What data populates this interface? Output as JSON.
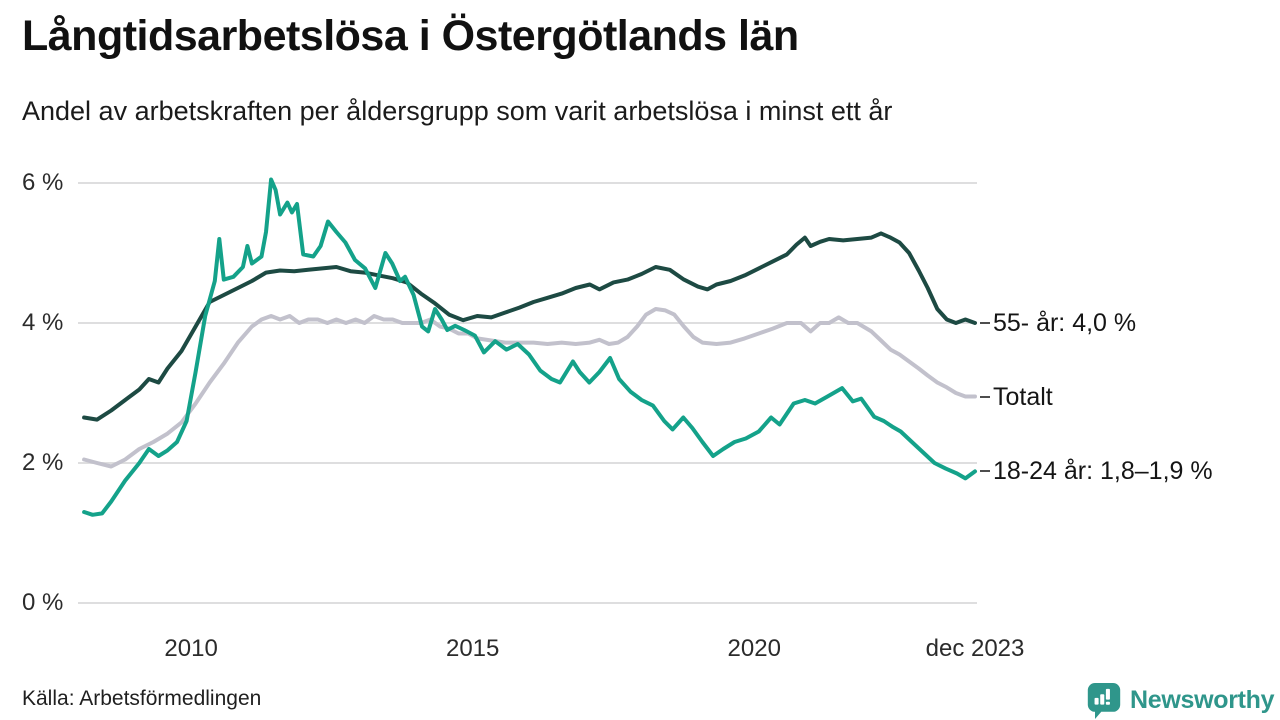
{
  "header": {
    "title": "Långtidsarbetslösa i Östergötlands län",
    "subtitle": "Andel av arbetskraften per åldersgrupp som varit arbetslösa i minst ett år"
  },
  "footer": {
    "source": "Källa: Arbetsförmedlingen",
    "logo_text": "Newsworthy"
  },
  "colors": {
    "grid": "#dededf",
    "axis_text": "#2b2b2b",
    "tick_dash": "#4d4d4d",
    "logo": "#2F968B"
  },
  "chart_data": {
    "type": "line",
    "title": "Långtidsarbetslösa i Östergötlands län",
    "subtitle": "Andel av arbetskraften per åldersgrupp som varit arbetslösa i minst ett år",
    "x_unit": "decimal_year",
    "x_range": [
      2008.08,
      2023.92
    ],
    "ylim": [
      0,
      6.6
    ],
    "grid": "horizontal",
    "legend_position": "end-labels-right",
    "yticks": [
      {
        "value": 0,
        "label": "0 %"
      },
      {
        "value": 2,
        "label": "2 %"
      },
      {
        "value": 4,
        "label": "4 %"
      },
      {
        "value": 6,
        "label": "6 %"
      }
    ],
    "xticks": [
      {
        "value": 2010,
        "label": "2010"
      },
      {
        "value": 2015,
        "label": "2015"
      },
      {
        "value": 2020,
        "label": "2020"
      },
      {
        "value": 2023.92,
        "label": "dec 2023"
      }
    ],
    "series": [
      {
        "id": "totalt",
        "name": "Totalt",
        "end_label": "Totalt",
        "color": "#c2c1cc",
        "points": [
          [
            2008.1,
            2.05
          ],
          [
            2008.33,
            2.0
          ],
          [
            2008.58,
            1.95
          ],
          [
            2008.83,
            2.05
          ],
          [
            2009.08,
            2.2
          ],
          [
            2009.33,
            2.3
          ],
          [
            2009.58,
            2.42
          ],
          [
            2009.83,
            2.58
          ],
          [
            2010.08,
            2.85
          ],
          [
            2010.33,
            3.15
          ],
          [
            2010.58,
            3.42
          ],
          [
            2010.83,
            3.72
          ],
          [
            2011.08,
            3.95
          ],
          [
            2011.25,
            4.05
          ],
          [
            2011.42,
            4.1
          ],
          [
            2011.58,
            4.05
          ],
          [
            2011.75,
            4.1
          ],
          [
            2011.92,
            4.0
          ],
          [
            2012.08,
            4.05
          ],
          [
            2012.25,
            4.05
          ],
          [
            2012.42,
            4.0
          ],
          [
            2012.58,
            4.05
          ],
          [
            2012.75,
            4.0
          ],
          [
            2012.92,
            4.05
          ],
          [
            2013.08,
            4.0
          ],
          [
            2013.25,
            4.1
          ],
          [
            2013.42,
            4.05
          ],
          [
            2013.58,
            4.05
          ],
          [
            2013.75,
            4.0
          ],
          [
            2013.92,
            4.0
          ],
          [
            2014.08,
            4.0
          ],
          [
            2014.25,
            4.05
          ],
          [
            2014.42,
            3.95
          ],
          [
            2014.58,
            3.92
          ],
          [
            2014.75,
            3.85
          ],
          [
            2014.92,
            3.85
          ],
          [
            2015.08,
            3.78
          ],
          [
            2015.33,
            3.75
          ],
          [
            2015.58,
            3.72
          ],
          [
            2015.83,
            3.72
          ],
          [
            2016.08,
            3.72
          ],
          [
            2016.33,
            3.7
          ],
          [
            2016.58,
            3.72
          ],
          [
            2016.83,
            3.7
          ],
          [
            2017.08,
            3.72
          ],
          [
            2017.25,
            3.76
          ],
          [
            2017.42,
            3.7
          ],
          [
            2017.58,
            3.72
          ],
          [
            2017.75,
            3.8
          ],
          [
            2017.92,
            3.95
          ],
          [
            2018.08,
            4.12
          ],
          [
            2018.25,
            4.2
          ],
          [
            2018.42,
            4.18
          ],
          [
            2018.58,
            4.12
          ],
          [
            2018.75,
            3.95
          ],
          [
            2018.92,
            3.8
          ],
          [
            2019.08,
            3.72
          ],
          [
            2019.33,
            3.7
          ],
          [
            2019.58,
            3.72
          ],
          [
            2019.83,
            3.78
          ],
          [
            2020.08,
            3.85
          ],
          [
            2020.33,
            3.92
          ],
          [
            2020.58,
            4.0
          ],
          [
            2020.83,
            4.0
          ],
          [
            2021.0,
            3.88
          ],
          [
            2021.17,
            4.0
          ],
          [
            2021.33,
            4.0
          ],
          [
            2021.5,
            4.08
          ],
          [
            2021.67,
            4.0
          ],
          [
            2021.83,
            4.0
          ],
          [
            2022.08,
            3.88
          ],
          [
            2022.25,
            3.75
          ],
          [
            2022.42,
            3.62
          ],
          [
            2022.58,
            3.55
          ],
          [
            2022.75,
            3.45
          ],
          [
            2022.92,
            3.35
          ],
          [
            2023.08,
            3.25
          ],
          [
            2023.25,
            3.15
          ],
          [
            2023.42,
            3.08
          ],
          [
            2023.58,
            3.0
          ],
          [
            2023.75,
            2.95
          ],
          [
            2023.92,
            2.95
          ]
        ]
      },
      {
        "id": "55-ar",
        "name": "55- år",
        "end_label": "55- år: 4,0 %",
        "color": "#1d4a43",
        "points": [
          [
            2008.1,
            2.65
          ],
          [
            2008.33,
            2.62
          ],
          [
            2008.58,
            2.75
          ],
          [
            2008.83,
            2.9
          ],
          [
            2009.08,
            3.05
          ],
          [
            2009.25,
            3.2
          ],
          [
            2009.42,
            3.15
          ],
          [
            2009.58,
            3.35
          ],
          [
            2009.83,
            3.6
          ],
          [
            2010.08,
            3.95
          ],
          [
            2010.33,
            4.3
          ],
          [
            2010.58,
            4.4
          ],
          [
            2010.83,
            4.5
          ],
          [
            2011.08,
            4.6
          ],
          [
            2011.33,
            4.72
          ],
          [
            2011.58,
            4.75
          ],
          [
            2011.83,
            4.74
          ],
          [
            2012.08,
            4.76
          ],
          [
            2012.33,
            4.78
          ],
          [
            2012.58,
            4.8
          ],
          [
            2012.83,
            4.74
          ],
          [
            2013.08,
            4.72
          ],
          [
            2013.33,
            4.68
          ],
          [
            2013.58,
            4.64
          ],
          [
            2013.83,
            4.58
          ],
          [
            2014.08,
            4.42
          ],
          [
            2014.33,
            4.28
          ],
          [
            2014.58,
            4.12
          ],
          [
            2014.83,
            4.04
          ],
          [
            2015.08,
            4.1
          ],
          [
            2015.33,
            4.08
          ],
          [
            2015.58,
            4.15
          ],
          [
            2015.83,
            4.22
          ],
          [
            2016.08,
            4.3
          ],
          [
            2016.33,
            4.36
          ],
          [
            2016.58,
            4.42
          ],
          [
            2016.83,
            4.5
          ],
          [
            2017.08,
            4.55
          ],
          [
            2017.25,
            4.48
          ],
          [
            2017.5,
            4.58
          ],
          [
            2017.75,
            4.62
          ],
          [
            2018.0,
            4.7
          ],
          [
            2018.25,
            4.8
          ],
          [
            2018.5,
            4.76
          ],
          [
            2018.75,
            4.62
          ],
          [
            2019.0,
            4.52
          ],
          [
            2019.17,
            4.48
          ],
          [
            2019.33,
            4.55
          ],
          [
            2019.58,
            4.6
          ],
          [
            2019.83,
            4.68
          ],
          [
            2020.08,
            4.78
          ],
          [
            2020.33,
            4.88
          ],
          [
            2020.58,
            4.98
          ],
          [
            2020.75,
            5.12
          ],
          [
            2020.9,
            5.22
          ],
          [
            2021.0,
            5.1
          ],
          [
            2021.17,
            5.16
          ],
          [
            2021.33,
            5.2
          ],
          [
            2021.58,
            5.18
          ],
          [
            2021.83,
            5.2
          ],
          [
            2022.08,
            5.22
          ],
          [
            2022.25,
            5.28
          ],
          [
            2022.42,
            5.22
          ],
          [
            2022.58,
            5.15
          ],
          [
            2022.75,
            5.0
          ],
          [
            2022.92,
            4.75
          ],
          [
            2023.08,
            4.5
          ],
          [
            2023.25,
            4.2
          ],
          [
            2023.42,
            4.05
          ],
          [
            2023.58,
            4.0
          ],
          [
            2023.75,
            4.05
          ],
          [
            2023.92,
            4.0
          ]
        ]
      },
      {
        "id": "18-24-ar",
        "name": "18-24 år",
        "end_label": "18-24 år: 1,8–1,9 %",
        "color": "#14a28a",
        "points": [
          [
            2008.1,
            1.3
          ],
          [
            2008.25,
            1.26
          ],
          [
            2008.42,
            1.28
          ],
          [
            2008.58,
            1.45
          ],
          [
            2008.83,
            1.75
          ],
          [
            2009.08,
            2.0
          ],
          [
            2009.25,
            2.2
          ],
          [
            2009.42,
            2.1
          ],
          [
            2009.58,
            2.18
          ],
          [
            2009.75,
            2.3
          ],
          [
            2009.92,
            2.6
          ],
          [
            2010.08,
            3.3
          ],
          [
            2010.25,
            4.1
          ],
          [
            2010.42,
            4.6
          ],
          [
            2010.5,
            5.2
          ],
          [
            2010.58,
            4.62
          ],
          [
            2010.75,
            4.66
          ],
          [
            2010.92,
            4.8
          ],
          [
            2011.0,
            5.1
          ],
          [
            2011.08,
            4.85
          ],
          [
            2011.25,
            4.95
          ],
          [
            2011.33,
            5.3
          ],
          [
            2011.42,
            6.05
          ],
          [
            2011.5,
            5.9
          ],
          [
            2011.58,
            5.55
          ],
          [
            2011.71,
            5.72
          ],
          [
            2011.79,
            5.58
          ],
          [
            2011.88,
            5.7
          ],
          [
            2011.99,
            4.98
          ],
          [
            2012.17,
            4.95
          ],
          [
            2012.3,
            5.1
          ],
          [
            2012.43,
            5.45
          ],
          [
            2012.58,
            5.3
          ],
          [
            2012.74,
            5.15
          ],
          [
            2012.91,
            4.9
          ],
          [
            2013.09,
            4.78
          ],
          [
            2013.27,
            4.5
          ],
          [
            2013.45,
            5.0
          ],
          [
            2013.57,
            4.85
          ],
          [
            2013.71,
            4.6
          ],
          [
            2013.8,
            4.66
          ],
          [
            2013.95,
            4.4
          ],
          [
            2014.1,
            3.95
          ],
          [
            2014.21,
            3.88
          ],
          [
            2014.33,
            4.2
          ],
          [
            2014.45,
            4.05
          ],
          [
            2014.55,
            3.9
          ],
          [
            2014.69,
            3.96
          ],
          [
            2014.85,
            3.9
          ],
          [
            2015.04,
            3.82
          ],
          [
            2015.2,
            3.58
          ],
          [
            2015.4,
            3.74
          ],
          [
            2015.6,
            3.62
          ],
          [
            2015.8,
            3.7
          ],
          [
            2016.0,
            3.55
          ],
          [
            2016.2,
            3.32
          ],
          [
            2016.4,
            3.2
          ],
          [
            2016.55,
            3.15
          ],
          [
            2016.78,
            3.45
          ],
          [
            2016.9,
            3.3
          ],
          [
            2017.07,
            3.15
          ],
          [
            2017.25,
            3.3
          ],
          [
            2017.44,
            3.5
          ],
          [
            2017.6,
            3.2
          ],
          [
            2017.8,
            3.02
          ],
          [
            2018.0,
            2.9
          ],
          [
            2018.2,
            2.82
          ],
          [
            2018.4,
            2.6
          ],
          [
            2018.55,
            2.48
          ],
          [
            2018.74,
            2.65
          ],
          [
            2018.9,
            2.5
          ],
          [
            2019.08,
            2.3
          ],
          [
            2019.27,
            2.1
          ],
          [
            2019.45,
            2.2
          ],
          [
            2019.65,
            2.3
          ],
          [
            2019.85,
            2.35
          ],
          [
            2020.08,
            2.45
          ],
          [
            2020.3,
            2.65
          ],
          [
            2020.45,
            2.55
          ],
          [
            2020.7,
            2.85
          ],
          [
            2020.9,
            2.9
          ],
          [
            2021.08,
            2.85
          ],
          [
            2021.3,
            2.95
          ],
          [
            2021.56,
            3.07
          ],
          [
            2021.75,
            2.88
          ],
          [
            2021.9,
            2.92
          ],
          [
            2022.13,
            2.66
          ],
          [
            2022.3,
            2.6
          ],
          [
            2022.45,
            2.52
          ],
          [
            2022.6,
            2.45
          ],
          [
            2022.8,
            2.3
          ],
          [
            2023.0,
            2.15
          ],
          [
            2023.2,
            2.0
          ],
          [
            2023.4,
            1.92
          ],
          [
            2023.6,
            1.85
          ],
          [
            2023.75,
            1.78
          ],
          [
            2023.92,
            1.88
          ]
        ]
      }
    ]
  }
}
